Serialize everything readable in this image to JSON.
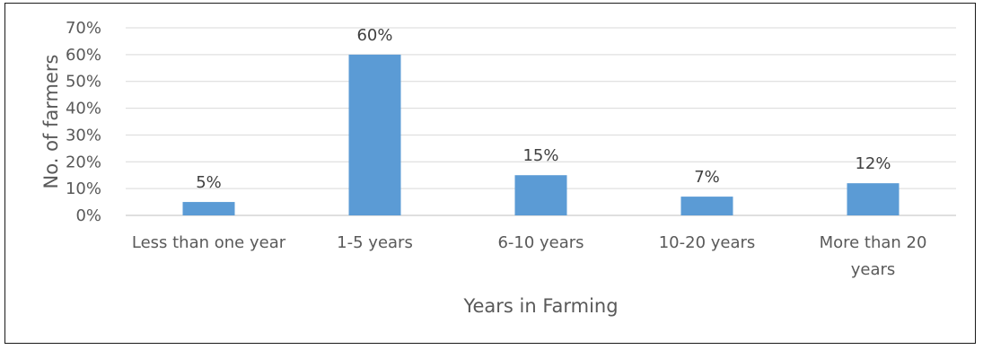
{
  "chart_data": {
    "type": "bar",
    "categories": [
      "Less than one year",
      "1-5 years",
      "6-10 years",
      "10-20 years",
      "More than 20 years"
    ],
    "values": [
      5,
      60,
      15,
      7,
      12
    ],
    "data_labels": [
      "5%",
      "60%",
      "15%",
      "7%",
      "12%"
    ],
    "y_ticks": [
      "0%",
      "10%",
      "20%",
      "30%",
      "40%",
      "50%",
      "60%",
      "70%"
    ],
    "xlabel": "Years in Farming",
    "ylabel": "No. of farmers",
    "ylim": [
      0,
      70
    ],
    "grid": true,
    "legend": "none",
    "bar_color": "#5B9BD5",
    "gridline_color": "#D9D9D9"
  }
}
